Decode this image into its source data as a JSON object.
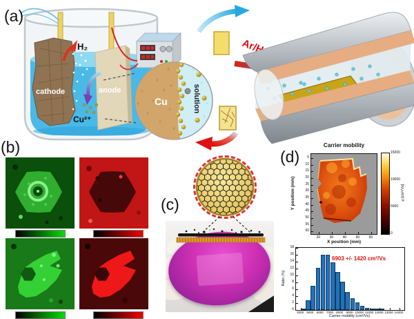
{
  "figure": {
    "panels": {
      "a": "(a)",
      "b": "(b)",
      "c": "(c)",
      "d": "(d)"
    }
  },
  "panel_a": {
    "h2_label": "H₂",
    "cathode_label": "cathode",
    "anode_label": "anode",
    "cu_ion_label": "Cu²⁺",
    "inset_cu_label": "Cu",
    "inset_solution_label": "solution",
    "gas_flow_label": "Ar/H₂"
  },
  "panel_b": {
    "maps": [
      {
        "channel": "green",
        "accent_color": "#03e003"
      },
      {
        "channel": "red",
        "accent_color": "#ee0404"
      },
      {
        "channel": "green",
        "accent_color": "#03e003"
      },
      {
        "channel": "red",
        "accent_color": "#ee0404"
      }
    ]
  },
  "chart_data": [
    {
      "id": "carrier-mobility-map",
      "type": "heatmap",
      "title": "Carrier mobility",
      "xlabel": "X position (mm)",
      "ylabel": "Y position (mm)",
      "x_ticks": [
        20,
        30,
        40,
        50,
        60
      ],
      "y_ticks": [
        5,
        10,
        15,
        20,
        25,
        30,
        35,
        40,
        45,
        50,
        55,
        60
      ],
      "xlim": [
        14,
        64
      ],
      "ylim": [
        2,
        62
      ],
      "colorbar": {
        "label": "μ [cm²/Vs]",
        "ticks": [
          0,
          5000,
          10000,
          15000
        ],
        "range": [
          0,
          15000
        ],
        "colormap": "hot"
      },
      "description": "Irregular graphene sample spanning ~15-52 mm in X and ~8-56 mm in Y; mobility mostly 5000-9000 cm²/Vs (orange-red) with bright 10000-15000 rim along top and left edges; gray background outside sample."
    },
    {
      "id": "mobility-histogram",
      "type": "bar",
      "xlabel": "Carrier mobility (cm²/Vs)",
      "ylabel": "Ratio (%)",
      "x_ticks": [
        4000,
        5000,
        6000,
        7000,
        8000,
        9000,
        10000,
        11000,
        12000,
        13000,
        14000
      ],
      "y_ticks": [
        0,
        2,
        4,
        6,
        8,
        10,
        12,
        14,
        16,
        18
      ],
      "xlim": [
        3500,
        14500
      ],
      "ylim": [
        0,
        18
      ],
      "bin_width": 500,
      "bin_centers": [
        4250,
        4750,
        5250,
        5750,
        6250,
        6750,
        7250,
        7750,
        8250,
        8750,
        9250,
        9750,
        10250,
        10750,
        11250,
        11750,
        12250
      ],
      "values": [
        0.4,
        2.8,
        7.0,
        12.3,
        16.1,
        16.0,
        13.8,
        11.0,
        8.2,
        5.3,
        3.4,
        2.2,
        1.2,
        0.7,
        0.4,
        0.2,
        0.1
      ],
      "annotation": "6903 +/- 1420 cm²/Vs",
      "annotation_color": "#e01010",
      "bar_color": "#2272b8",
      "legend": null,
      "grid": false
    }
  ]
}
